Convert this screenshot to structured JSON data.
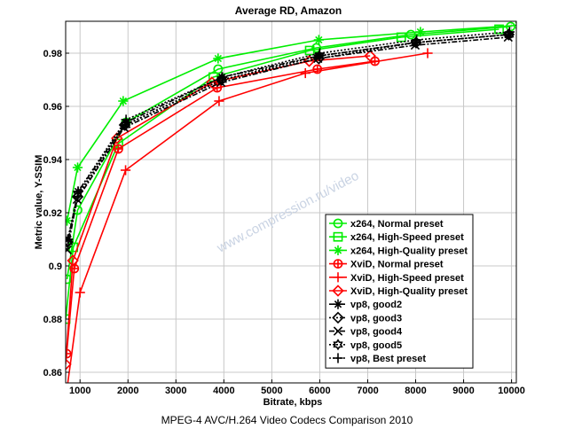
{
  "chart_data": {
    "type": "line",
    "title": "Average RD, Amazon",
    "xlabel": "Bitrate, kbps",
    "ylabel": "Metric value, Y-SSIM",
    "xlim": [
      700,
      10100
    ],
    "ylim": [
      0.856,
      0.992
    ],
    "x_ticks": [
      1000,
      2000,
      3000,
      4000,
      5000,
      6000,
      7000,
      8000,
      9000,
      10000
    ],
    "x_tick_labels": [
      "1000",
      "2000",
      "3000",
      "4000",
      "5000",
      "6000",
      "7000",
      "8000",
      "9000",
      "10000"
    ],
    "y_ticks": [
      0.86,
      0.88,
      0.9,
      0.92,
      0.94,
      0.96,
      0.98
    ],
    "y_tick_labels": [
      "0.86",
      "0.88",
      "0.9",
      "0.92",
      "0.94",
      "0.96",
      "0.98"
    ],
    "grid": true,
    "legend_position": "bottom-right",
    "series": [
      {
        "name": "x264, Normal preset",
        "color": "#00ee00",
        "style": "solid",
        "marker": "circle",
        "x": [
          730,
          950,
          1960,
          3880,
          5930,
          7900,
          9980
        ],
        "y": [
          0.895,
          0.921,
          0.954,
          0.974,
          0.982,
          0.987,
          0.99
        ]
      },
      {
        "name": "x264, High-Speed preset",
        "color": "#00ee00",
        "style": "solid",
        "marker": "square",
        "x": [
          700,
          860,
          1800,
          3780,
          5790,
          7700,
          9740
        ],
        "y": [
          0.88,
          0.907,
          0.946,
          0.971,
          0.981,
          0.986,
          0.989
        ]
      },
      {
        "name": "x264, High-Quality preset",
        "color": "#00ee00",
        "style": "solid",
        "marker": "asterisk",
        "x": [
          730,
          950,
          1900,
          3880,
          5980,
          8100,
          10150
        ],
        "y": [
          0.917,
          0.937,
          0.962,
          0.978,
          0.985,
          0.988,
          0.9905
        ]
      },
      {
        "name": "XviD, Normal preset",
        "color": "#ff0000",
        "style": "solid",
        "marker": "circle-plus",
        "x": [
          720,
          880,
          1800,
          3860,
          5950,
          7150
        ],
        "y": [
          0.867,
          0.899,
          0.944,
          0.967,
          0.974,
          0.977
        ]
      },
      {
        "name": "XviD, High-Speed preset",
        "color": "#ff0000",
        "style": "solid",
        "marker": "plus",
        "x": [
          730,
          1000,
          1950,
          3900,
          5700,
          8250
        ],
        "y": [
          0.854,
          0.89,
          0.936,
          0.962,
          0.9725,
          0.98
        ]
      },
      {
        "name": "XviD, High-Quality preset",
        "color": "#ff0000",
        "style": "solid",
        "marker": "diamond",
        "x": [
          700,
          850,
          1770,
          3750,
          5780,
          7050
        ],
        "y": [
          0.863,
          0.902,
          0.948,
          0.969,
          0.977,
          0.979
        ]
      },
      {
        "name": "vp8, good2",
        "color": "#000000",
        "style": "dashdot",
        "marker": "asterisk",
        "x": [
          750,
          960,
          1960,
          3960,
          5990,
          8000,
          9950
        ],
        "y": [
          0.91,
          0.928,
          0.954,
          0.971,
          0.979,
          0.984,
          0.987
        ]
      },
      {
        "name": "vp8, good3",
        "color": "#000000",
        "style": "dotted",
        "marker": "diamond",
        "x": [
          740,
          950,
          1930,
          3950,
          5980,
          8010,
          9940
        ],
        "y": [
          0.909,
          0.926,
          0.953,
          0.97,
          0.978,
          0.984,
          0.987
        ]
      },
      {
        "name": "vp8, good4",
        "color": "#000000",
        "style": "dashdot",
        "marker": "x",
        "x": [
          735,
          940,
          1920,
          3940,
          5960,
          7990,
          9930
        ],
        "y": [
          0.906,
          0.925,
          0.952,
          0.969,
          0.978,
          0.983,
          0.986
        ]
      },
      {
        "name": "vp8, good5",
        "color": "#000000",
        "style": "dotted",
        "marker": "hexagram",
        "x": [
          745,
          955,
          1955,
          3960,
          5990,
          8005,
          9950
        ],
        "y": [
          0.909,
          0.927,
          0.953,
          0.97,
          0.979,
          0.984,
          0.987
        ]
      },
      {
        "name": "vp8, Best preset",
        "color": "#000000",
        "style": "dotted",
        "marker": "plus",
        "x": [
          745,
          960,
          1960,
          3970,
          6000,
          8020,
          9960
        ],
        "y": [
          0.91,
          0.928,
          0.955,
          0.971,
          0.98,
          0.985,
          0.988
        ]
      }
    ],
    "watermark": "www.compression.ru/video"
  },
  "footer": "MPEG-4 AVC/H.264 Video Codecs Comparison 2010"
}
